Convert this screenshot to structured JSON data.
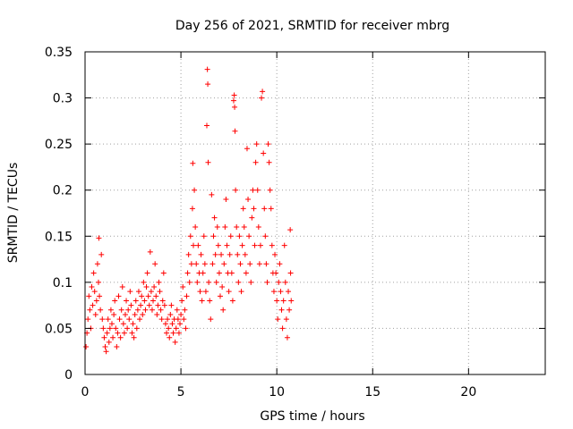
{
  "chart_data": {
    "type": "scatter",
    "title": "Day 256 of 2021, SRMTID for receiver mbrg",
    "xlabel": "GPS time / hours",
    "ylabel": "SRMTID / TECUs",
    "xlim": [
      0,
      24
    ],
    "ylim": [
      0,
      0.35
    ],
    "x_ticks": [
      0,
      5,
      10,
      15,
      20
    ],
    "x_tick_labels": [
      "0",
      "5",
      "10",
      "15",
      "20"
    ],
    "y_ticks": [
      0,
      0.05,
      0.1,
      0.15,
      0.2,
      0.25,
      0.3,
      0.35
    ],
    "y_tick_labels": [
      "0",
      "0.05",
      "0.1",
      "0.15",
      "0.2",
      "0.25",
      "0.3",
      "0.35"
    ],
    "grid": true,
    "marker": "+",
    "colors": {
      "points": "#ff0000",
      "axes": "#000000",
      "grid": "#a0a0a0"
    },
    "series": [
      {
        "name": "mbrg",
        "points": [
          [
            0.05,
            0.03
          ],
          [
            0.1,
            0.045
          ],
          [
            0.15,
            0.06
          ],
          [
            0.2,
            0.085
          ],
          [
            0.25,
            0.07
          ],
          [
            0.3,
            0.05
          ],
          [
            0.35,
            0.095
          ],
          [
            0.4,
            0.075
          ],
          [
            0.45,
            0.11
          ],
          [
            0.5,
            0.09
          ],
          [
            0.55,
            0.065
          ],
          [
            0.6,
            0.08
          ],
          [
            0.65,
            0.12
          ],
          [
            0.7,
            0.1
          ],
          [
            0.72,
            0.148
          ],
          [
            0.75,
            0.085
          ],
          [
            0.8,
            0.07
          ],
          [
            0.85,
            0.13
          ],
          [
            0.9,
            0.06
          ],
          [
            0.95,
            0.05
          ],
          [
            1.0,
            0.04
          ],
          [
            1.05,
            0.03
          ],
          [
            1.1,
            0.025
          ],
          [
            1.15,
            0.045
          ],
          [
            1.2,
            0.06
          ],
          [
            1.25,
            0.035
          ],
          [
            1.3,
            0.05
          ],
          [
            1.35,
            0.07
          ],
          [
            1.4,
            0.055
          ],
          [
            1.45,
            0.04
          ],
          [
            1.5,
            0.065
          ],
          [
            1.55,
            0.08
          ],
          [
            1.6,
            0.05
          ],
          [
            1.65,
            0.03
          ],
          [
            1.7,
            0.045
          ],
          [
            1.75,
            0.085
          ],
          [
            1.8,
            0.06
          ],
          [
            1.85,
            0.04
          ],
          [
            1.9,
            0.07
          ],
          [
            1.95,
            0.095
          ],
          [
            2.0,
            0.055
          ],
          [
            2.05,
            0.045
          ],
          [
            2.1,
            0.065
          ],
          [
            2.15,
            0.08
          ],
          [
            2.2,
            0.05
          ],
          [
            2.25,
            0.07
          ],
          [
            2.3,
            0.06
          ],
          [
            2.35,
            0.09
          ],
          [
            2.4,
            0.075
          ],
          [
            2.45,
            0.045
          ],
          [
            2.5,
            0.055
          ],
          [
            2.55,
            0.04
          ],
          [
            2.6,
            0.065
          ],
          [
            2.65,
            0.08
          ],
          [
            2.7,
            0.05
          ],
          [
            2.75,
            0.07
          ],
          [
            2.8,
            0.09
          ],
          [
            2.85,
            0.06
          ],
          [
            2.9,
            0.075
          ],
          [
            2.95,
            0.085
          ],
          [
            3.0,
            0.065
          ],
          [
            3.05,
            0.1
          ],
          [
            3.1,
            0.08
          ],
          [
            3.15,
            0.07
          ],
          [
            3.2,
            0.095
          ],
          [
            3.25,
            0.11
          ],
          [
            3.3,
            0.085
          ],
          [
            3.35,
            0.075
          ],
          [
            3.4,
            0.133
          ],
          [
            3.45,
            0.09
          ],
          [
            3.5,
            0.07
          ],
          [
            3.55,
            0.08
          ],
          [
            3.6,
            0.095
          ],
          [
            3.65,
            0.12
          ],
          [
            3.7,
            0.085
          ],
          [
            3.75,
            0.065
          ],
          [
            3.8,
            0.075
          ],
          [
            3.85,
            0.1
          ],
          [
            3.9,
            0.09
          ],
          [
            3.95,
            0.07
          ],
          [
            4.0,
            0.06
          ],
          [
            4.05,
            0.08
          ],
          [
            4.1,
            0.11
          ],
          [
            4.15,
            0.075
          ],
          [
            4.2,
            0.055
          ],
          [
            4.25,
            0.045
          ],
          [
            4.3,
            0.06
          ],
          [
            4.35,
            0.05
          ],
          [
            4.4,
            0.04
          ],
          [
            4.45,
            0.065
          ],
          [
            4.5,
            0.075
          ],
          [
            4.55,
            0.055
          ],
          [
            4.6,
            0.045
          ],
          [
            4.65,
            0.06
          ],
          [
            4.7,
            0.035
          ],
          [
            4.75,
            0.05
          ],
          [
            4.8,
            0.07
          ],
          [
            4.85,
            0.06
          ],
          [
            4.9,
            0.045
          ],
          [
            4.95,
            0.055
          ],
          [
            5.0,
            0.065
          ],
          [
            5.05,
            0.08
          ],
          [
            5.1,
            0.095
          ],
          [
            5.15,
            0.06
          ],
          [
            5.2,
            0.07
          ],
          [
            5.25,
            0.05
          ],
          [
            5.3,
            0.085
          ],
          [
            5.35,
            0.11
          ],
          [
            5.4,
            0.13
          ],
          [
            5.45,
            0.1
          ],
          [
            5.5,
            0.15
          ],
          [
            5.55,
            0.12
          ],
          [
            5.6,
            0.18
          ],
          [
            5.62,
            0.229
          ],
          [
            5.65,
            0.14
          ],
          [
            5.7,
            0.2
          ],
          [
            5.75,
            0.16
          ],
          [
            5.8,
            0.12
          ],
          [
            5.85,
            0.1
          ],
          [
            5.9,
            0.14
          ],
          [
            5.95,
            0.11
          ],
          [
            6.0,
            0.09
          ],
          [
            6.05,
            0.13
          ],
          [
            6.1,
            0.08
          ],
          [
            6.15,
            0.11
          ],
          [
            6.2,
            0.15
          ],
          [
            6.25,
            0.12
          ],
          [
            6.3,
            0.09
          ],
          [
            6.35,
            0.27
          ],
          [
            6.38,
            0.331
          ],
          [
            6.4,
            0.315
          ],
          [
            6.42,
            0.23
          ],
          [
            6.45,
            0.1
          ],
          [
            6.5,
            0.08
          ],
          [
            6.55,
            0.06
          ],
          [
            6.6,
            0.195
          ],
          [
            6.65,
            0.12
          ],
          [
            6.7,
            0.15
          ],
          [
            6.75,
            0.17
          ],
          [
            6.8,
            0.13
          ],
          [
            6.85,
            0.1
          ],
          [
            6.9,
            0.16
          ],
          [
            6.95,
            0.14
          ],
          [
            7.0,
            0.11
          ],
          [
            7.05,
            0.085
          ],
          [
            7.1,
            0.13
          ],
          [
            7.15,
            0.095
          ],
          [
            7.2,
            0.07
          ],
          [
            7.25,
            0.12
          ],
          [
            7.3,
            0.16
          ],
          [
            7.35,
            0.19
          ],
          [
            7.4,
            0.14
          ],
          [
            7.45,
            0.11
          ],
          [
            7.5,
            0.09
          ],
          [
            7.55,
            0.13
          ],
          [
            7.6,
            0.15
          ],
          [
            7.65,
            0.11
          ],
          [
            7.7,
            0.08
          ],
          [
            7.75,
            0.297
          ],
          [
            7.78,
            0.303
          ],
          [
            7.8,
            0.29
          ],
          [
            7.82,
            0.264
          ],
          [
            7.85,
            0.2
          ],
          [
            7.9,
            0.16
          ],
          [
            7.95,
            0.13
          ],
          [
            8.0,
            0.1
          ],
          [
            8.05,
            0.15
          ],
          [
            8.1,
            0.12
          ],
          [
            8.15,
            0.09
          ],
          [
            8.2,
            0.14
          ],
          [
            8.25,
            0.18
          ],
          [
            8.3,
            0.16
          ],
          [
            8.35,
            0.13
          ],
          [
            8.4,
            0.11
          ],
          [
            8.45,
            0.245
          ],
          [
            8.5,
            0.19
          ],
          [
            8.55,
            0.15
          ],
          [
            8.6,
            0.12
          ],
          [
            8.65,
            0.1
          ],
          [
            8.7,
            0.17
          ],
          [
            8.75,
            0.2
          ],
          [
            8.8,
            0.18
          ],
          [
            8.85,
            0.14
          ],
          [
            8.9,
            0.23
          ],
          [
            8.95,
            0.25
          ],
          [
            9.0,
            0.2
          ],
          [
            9.05,
            0.16
          ],
          [
            9.1,
            0.12
          ],
          [
            9.15,
            0.14
          ],
          [
            9.2,
            0.3
          ],
          [
            9.25,
            0.307
          ],
          [
            9.3,
            0.24
          ],
          [
            9.35,
            0.18
          ],
          [
            9.4,
            0.15
          ],
          [
            9.45,
            0.12
          ],
          [
            9.5,
            0.1
          ],
          [
            9.55,
            0.25
          ],
          [
            9.6,
            0.23
          ],
          [
            9.65,
            0.2
          ],
          [
            9.7,
            0.18
          ],
          [
            9.75,
            0.14
          ],
          [
            9.8,
            0.11
          ],
          [
            9.85,
            0.09
          ],
          [
            9.9,
            0.13
          ],
          [
            9.95,
            0.11
          ],
          [
            10.0,
            0.08
          ],
          [
            10.05,
            0.06
          ],
          [
            10.1,
            0.1
          ],
          [
            10.15,
            0.12
          ],
          [
            10.2,
            0.09
          ],
          [
            10.25,
            0.07
          ],
          [
            10.3,
            0.05
          ],
          [
            10.35,
            0.08
          ],
          [
            10.4,
            0.14
          ],
          [
            10.45,
            0.1
          ],
          [
            10.5,
            0.06
          ],
          [
            10.55,
            0.04
          ],
          [
            10.6,
            0.09
          ],
          [
            10.65,
            0.07
          ],
          [
            10.7,
            0.157
          ],
          [
            10.72,
            0.11
          ],
          [
            10.75,
            0.08
          ]
        ]
      }
    ]
  }
}
